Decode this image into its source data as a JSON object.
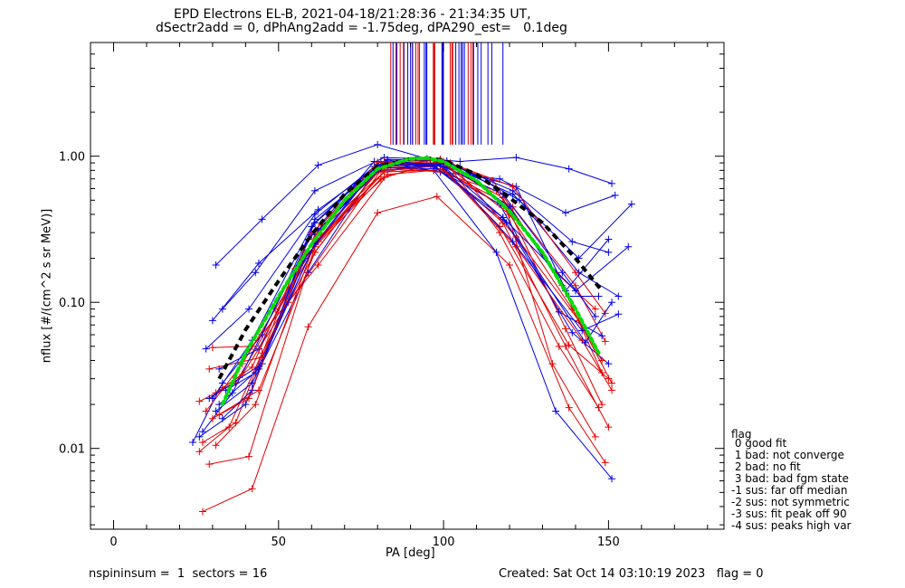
{
  "chart_data": {
    "type": "line",
    "title": "EPD Electrons EL-B, 2021-04-18/21:28:36 - 21:34:35 UT,",
    "subtitle": "dSectr2add = 0, dPhAng2add = -1.75deg, dPA290_est=   0.1deg",
    "xlabel": "PA [deg]",
    "ylabel": "nflux [#/(cm^2 s sr MeV)]",
    "xlim": [
      -7,
      185
    ],
    "ylim": [
      0.0028,
      6.0
    ],
    "yscale": "log",
    "xticks": [
      0,
      50,
      100,
      150
    ],
    "xtick_labels": [
      "0",
      "50",
      "100",
      "150"
    ],
    "yticks": [
      0.01,
      0.1,
      1.0
    ],
    "ytick_labels": [
      "0.01",
      "0.10",
      "1.00"
    ],
    "grid": false,
    "colors": {
      "sectors_a": "#e00000",
      "sectors_b": "#0000e0",
      "median": "#000000",
      "fit": "#00dd00",
      "axes": "#000000"
    },
    "series": [
      {
        "color": "#000000",
        "style": "dashed",
        "x": [
          32,
          40,
          50,
          60,
          70,
          80,
          90,
          95,
          100,
          110,
          120,
          130,
          140,
          148
        ],
        "y": [
          0.03,
          0.065,
          0.14,
          0.29,
          0.55,
          0.85,
          0.96,
          0.97,
          0.94,
          0.75,
          0.52,
          0.35,
          0.2,
          0.12
        ]
      },
      {
        "color": "#00dd00",
        "style": "dotted",
        "x": [
          33,
          40,
          50,
          60,
          70,
          80,
          90,
          95,
          100,
          110,
          120,
          130,
          140,
          147
        ],
        "y": [
          0.02,
          0.045,
          0.11,
          0.25,
          0.5,
          0.82,
          0.96,
          0.97,
          0.92,
          0.68,
          0.42,
          0.22,
          0.09,
          0.045
        ]
      },
      {
        "color": "#0000e0",
        "x": [
          31,
          45,
          62,
          80,
          95,
          105,
          122,
          138,
          151
        ],
        "y": [
          0.18,
          0.37,
          0.87,
          1.2,
          0.96,
          0.92,
          0.98,
          0.82,
          0.65
        ]
      },
      {
        "color": "#e00000",
        "x": [
          27,
          42,
          59,
          80,
          98,
          120,
          138,
          149
        ],
        "y": [
          0.0037,
          0.0053,
          0.068,
          0.41,
          0.53,
          0.18,
          0.019,
          0.008
        ]
      },
      {
        "color": "#0000e0",
        "x": [
          24,
          33,
          45,
          61,
          79,
          97,
          116,
          134,
          151
        ],
        "y": [
          0.011,
          0.028,
          0.06,
          0.35,
          0.85,
          0.8,
          0.22,
          0.018,
          0.0062
        ]
      },
      {
        "color": "#e00000",
        "x": [
          26,
          35,
          45,
          61,
          81,
          98,
          118,
          137,
          150
        ],
        "y": [
          0.0095,
          0.014,
          0.045,
          0.22,
          0.85,
          0.88,
          0.35,
          0.05,
          0.014
        ]
      },
      {
        "color": "#0000e0",
        "x": [
          28,
          41,
          61,
          81,
          99,
          117,
          137,
          152
        ],
        "y": [
          0.048,
          0.09,
          0.4,
          0.92,
          0.78,
          0.7,
          0.41,
          0.54
        ]
      },
      {
        "color": "#e00000",
        "x": [
          28,
          39,
          49,
          63,
          82,
          100,
          115,
          136,
          148
        ],
        "y": [
          0.018,
          0.038,
          0.09,
          0.29,
          0.72,
          0.92,
          0.68,
          0.13,
          0.033
        ]
      },
      {
        "color": "#0000e0",
        "x": [
          33,
          43,
          61,
          82,
          99,
          121,
          139,
          150
        ],
        "y": [
          0.09,
          0.16,
          0.58,
          0.98,
          0.95,
          0.58,
          0.26,
          0.22
        ]
      },
      {
        "color": "#e00000",
        "x": [
          30,
          42,
          62,
          83,
          97,
          116,
          134,
          146
        ],
        "y": [
          0.049,
          0.05,
          0.18,
          0.75,
          0.8,
          0.58,
          0.16,
          0.09
        ]
      },
      {
        "color": "#0000e0",
        "x": [
          30,
          44,
          62,
          83,
          101,
          123,
          141,
          153
        ],
        "y": [
          0.075,
          0.185,
          0.43,
          0.95,
          0.93,
          0.5,
          0.16,
          0.11
        ]
      },
      {
        "color": "#e00000",
        "x": [
          29,
          41,
          61,
          81,
          98,
          118,
          137,
          148
        ],
        "y": [
          0.0078,
          0.0088,
          0.24,
          0.7,
          0.92,
          0.52,
          0.066,
          0.02
        ]
      },
      {
        "color": "#0000e0",
        "x": [
          32,
          44,
          62,
          81,
          98,
          119,
          139,
          150
        ],
        "y": [
          0.035,
          0.048,
          0.31,
          0.84,
          0.82,
          0.35,
          0.062,
          0.038
        ]
      },
      {
        "color": "#e00000",
        "x": [
          26,
          37,
          62,
          82,
          96,
          121,
          140,
          149
        ],
        "y": [
          0.021,
          0.028,
          0.26,
          0.78,
          0.88,
          0.45,
          0.13,
          0.054
        ]
      },
      {
        "color": "#0000e0",
        "x": [
          34,
          43,
          61,
          80,
          96,
          122,
          138,
          147
        ],
        "y": [
          0.025,
          0.033,
          0.25,
          0.88,
          0.9,
          0.62,
          0.11,
          0.11
        ]
      },
      {
        "color": "#e00000",
        "x": [
          27,
          37,
          55,
          81,
          101,
          119,
          133,
          146
        ],
        "y": [
          0.011,
          0.015,
          0.17,
          0.82,
          0.78,
          0.44,
          0.038,
          0.012
        ]
      },
      {
        "color": "#0000e0",
        "x": [
          31,
          42,
          59,
          79,
          98,
          118,
          136,
          146
        ],
        "y": [
          0.018,
          0.028,
          0.16,
          0.78,
          0.89,
          0.55,
          0.16,
          0.08
        ]
      },
      {
        "color": "#e00000",
        "x": [
          29,
          45,
          61,
          84,
          99,
          121,
          140,
          149
        ],
        "y": [
          0.035,
          0.042,
          0.29,
          0.86,
          0.95,
          0.62,
          0.16,
          0.084
        ]
      },
      {
        "color": "#0000e0",
        "x": [
          27,
          36,
          60,
          79,
          97,
          117,
          135,
          148
        ],
        "y": [
          0.013,
          0.024,
          0.29,
          0.92,
          0.84,
          0.47,
          0.086,
          0.059
        ]
      },
      {
        "color": "#e00000",
        "x": [
          33,
          39,
          53,
          81,
          99,
          117,
          138,
          150
        ],
        "y": [
          0.026,
          0.032,
          0.1,
          0.8,
          0.86,
          0.33,
          0.051,
          0.03
        ]
      },
      {
        "color": "#0000e0",
        "x": [
          29,
          45,
          61,
          82,
          102,
          120,
          137,
          150
        ],
        "y": [
          0.022,
          0.038,
          0.37,
          0.9,
          0.88,
          0.45,
          0.12,
          0.27
        ]
      },
      {
        "color": "#e00000",
        "x": [
          31,
          42,
          60,
          83,
          101,
          117,
          135,
          147
        ],
        "y": [
          0.024,
          0.036,
          0.3,
          0.88,
          0.89,
          0.3,
          0.05,
          0.019
        ]
      },
      {
        "color": "#0000e0",
        "x": [
          26,
          40,
          58,
          80,
          100,
          121,
          141,
          157
        ],
        "y": [
          0.012,
          0.02,
          0.2,
          0.86,
          0.9,
          0.55,
          0.2,
          0.47
        ]
      },
      {
        "color": "#e00000",
        "x": [
          30,
          44,
          61,
          82,
          99,
          120,
          139,
          148
        ],
        "y": [
          0.016,
          0.025,
          0.22,
          0.92,
          0.93,
          0.4,
          0.09,
          0.04
        ]
      },
      {
        "color": "#0000e0",
        "x": [
          33,
          42,
          59,
          81,
          97,
          118,
          140,
          156
        ],
        "y": [
          0.016,
          0.025,
          0.27,
          0.83,
          0.86,
          0.38,
          0.12,
          0.24
        ]
      },
      {
        "color": "#e00000",
        "x": [
          32,
          41,
          58,
          82,
          100,
          122,
          142,
          151
        ],
        "y": [
          0.017,
          0.022,
          0.22,
          0.78,
          0.81,
          0.24,
          0.055,
          0.025
        ]
      },
      {
        "color": "#0000e0",
        "x": [
          30,
          42,
          60,
          80,
          99,
          121,
          142,
          153
        ],
        "y": [
          0.022,
          0.055,
          0.33,
          0.87,
          0.88,
          0.26,
          0.064,
          0.083
        ]
      },
      {
        "color": "#e00000",
        "x": [
          31,
          43,
          63,
          80,
          102,
          122,
          141,
          151
        ],
        "y": [
          0.0105,
          0.02,
          0.34,
          0.91,
          0.9,
          0.28,
          0.075,
          0.028
        ]
      },
      {
        "color": "#0000e0",
        "x": [
          32,
          44,
          63,
          83,
          100,
          118,
          143,
          151
        ],
        "y": [
          0.02,
          0.035,
          0.32,
          0.94,
          0.85,
          0.38,
          0.053,
          0.1
        ]
      }
    ],
    "markers": {
      "counts": {
        "red": 18,
        "blue": 24
      },
      "x_range": [
        84,
        118
      ],
      "y_range": [
        1.2,
        6.0
      ]
    },
    "legend": {
      "title": "flag",
      "entries": [
        " 0 good fit",
        " 1 bad: not converge",
        " 2 bad: no fit",
        " 3 bad: bad fgm state",
        "-1 sus: far off median",
        "-2 sus: not symmetric",
        "-3 sus: fit peak off 90",
        "-4 sus: peaks high var"
      ]
    }
  },
  "footer": {
    "left": "nspininsum =  1  sectors = 16",
    "right": "Created: Sat Oct 14 03:10:19 2023   flag = 0"
  }
}
